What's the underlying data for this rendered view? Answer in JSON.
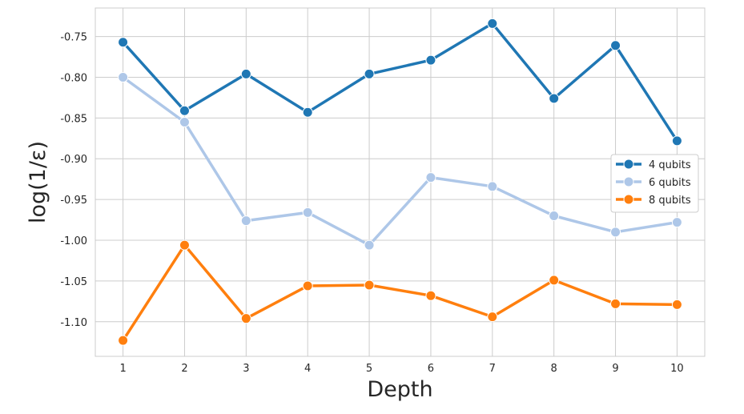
{
  "chart_data": {
    "type": "line",
    "title": "",
    "xlabel": "Depth",
    "ylabel": "log(1/ε)",
    "x": [
      1,
      2,
      3,
      4,
      5,
      6,
      7,
      8,
      9,
      10
    ],
    "xlim": [
      0.55,
      10.45
    ],
    "ylim": [
      -1.1425,
      -0.715
    ],
    "xticks": [
      1,
      2,
      3,
      4,
      5,
      6,
      7,
      8,
      9,
      10
    ],
    "yticks": [
      -0.75,
      -0.8,
      -0.85,
      -0.9,
      -0.95,
      -1.0,
      -1.05,
      -1.1
    ],
    "ytick_labels": [
      "-0.75",
      "-0.80",
      "-0.85",
      "-0.90",
      "-0.95",
      "-1.00",
      "-1.05",
      "-1.10"
    ],
    "grid": true,
    "legend_position": "center-right",
    "series": [
      {
        "name": "4 qubits",
        "color": "#1f77b4",
        "values": [
          -0.757,
          -0.841,
          -0.796,
          -0.843,
          -0.796,
          -0.779,
          -0.734,
          -0.826,
          -0.761,
          -0.878
        ]
      },
      {
        "name": "6 qubits",
        "color": "#aec7e8",
        "values": [
          -0.8,
          -0.855,
          -0.976,
          -0.966,
          -1.006,
          -0.923,
          -0.934,
          -0.97,
          -0.99,
          -0.978
        ]
      },
      {
        "name": "8 qubits",
        "color": "#ff7f0e",
        "values": [
          -1.123,
          -1.006,
          -1.096,
          -1.056,
          -1.055,
          -1.068,
          -1.094,
          -1.049,
          -1.078,
          -1.079
        ]
      }
    ]
  }
}
